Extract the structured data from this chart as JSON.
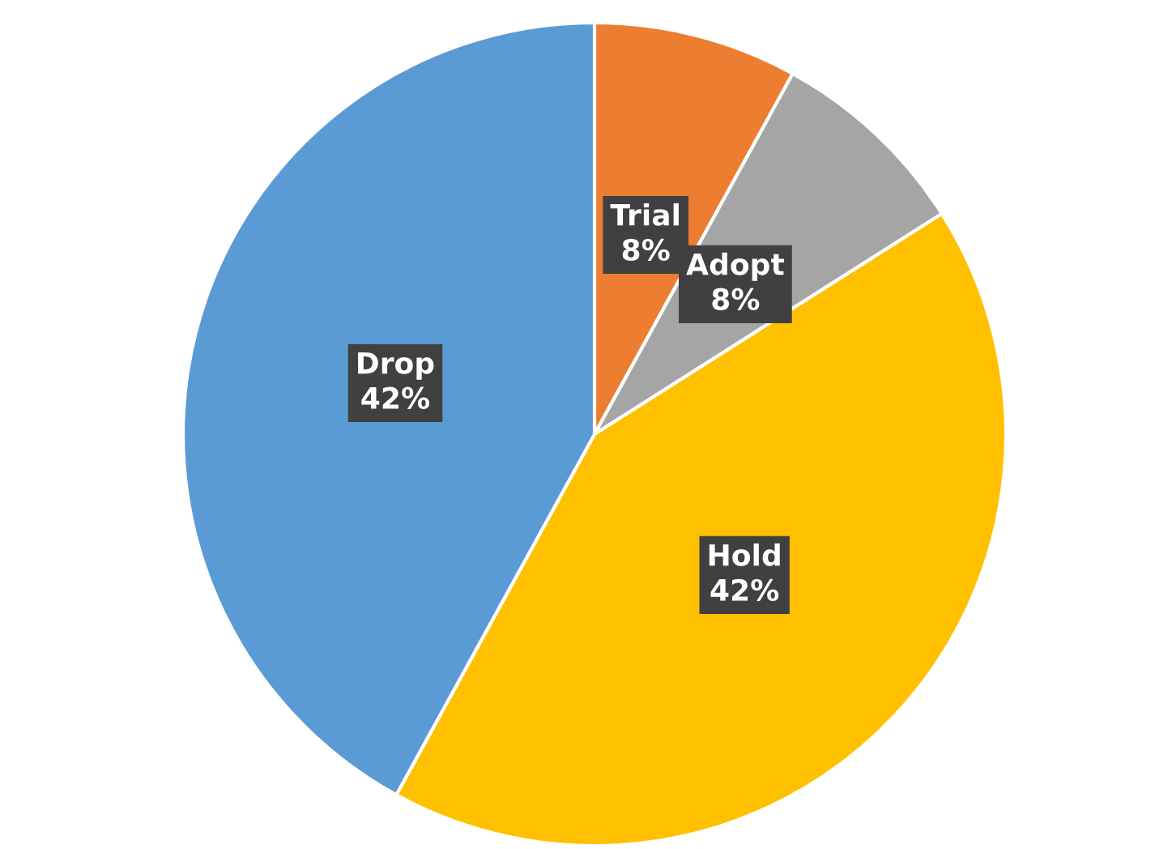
{
  "chart_data": {
    "type": "pie",
    "categories": [
      "Trial",
      "Adopt",
      "Hold",
      "Drop"
    ],
    "values": [
      8,
      8,
      42,
      42
    ],
    "value_labels": [
      "8%",
      "8%",
      "42%",
      "42%"
    ],
    "colors": [
      "#ed7d31",
      "#a5a5a5",
      "#ffc000",
      "#5b9bd5"
    ],
    "legend": false
  }
}
